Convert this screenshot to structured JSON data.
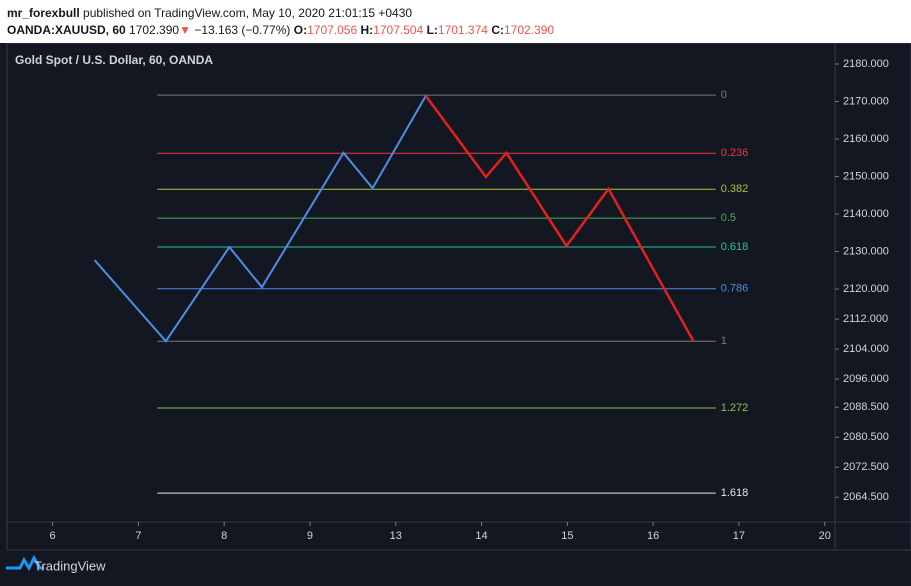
{
  "header": {
    "publisher": "mr_forexbull",
    "published": "published on TradingView.com, May 10, 2020 21:01:15 +0430",
    "symbol": "OANDA:XAUUSD, 60",
    "price": "1702.390",
    "arrow": "▼",
    "change": "−13.163 (−0.77%)",
    "o_label": "O:",
    "o": "1707.056",
    "h_label": "H:",
    "h": "1707.504",
    "l_label": "L:",
    "l": "1701.374",
    "c_label": "C:",
    "c": "1702.390"
  },
  "chart_data": {
    "type": "line",
    "title": "Gold Spot / U.S. Dollar, 60, OANDA",
    "xlim": [
      -0.52,
      9.12
    ],
    "xticks": [
      {
        "value": 0,
        "label": "6"
      },
      {
        "value": 1,
        "label": "7"
      },
      {
        "value": 2,
        "label": "8"
      },
      {
        "value": 3,
        "label": "9"
      },
      {
        "value": 4,
        "label": "13"
      },
      {
        "value": 5,
        "label": "14"
      },
      {
        "value": 6,
        "label": "15"
      },
      {
        "value": 7,
        "label": "16"
      },
      {
        "value": 8,
        "label": "17"
      },
      {
        "value": 9,
        "label": "20"
      }
    ],
    "ylim": [
      2057.9,
      2185.6
    ],
    "yticks": [
      {
        "value": 2180,
        "label": "2180.000"
      },
      {
        "value": 2170,
        "label": "2170.000"
      },
      {
        "value": 2160,
        "label": "2160.000"
      },
      {
        "value": 2150,
        "label": "2150.000"
      },
      {
        "value": 2140,
        "label": "2140.000"
      },
      {
        "value": 2130,
        "label": "2130.000"
      },
      {
        "value": 2120,
        "label": "2120.000"
      },
      {
        "value": 2112,
        "label": "2112.000"
      },
      {
        "value": 2104,
        "label": "2104.000"
      },
      {
        "value": 2096,
        "label": "2096.000"
      },
      {
        "value": 2088.5,
        "label": "2088.500"
      },
      {
        "value": 2080.5,
        "label": "2080.500"
      },
      {
        "value": 2072.5,
        "label": "2072.500"
      },
      {
        "value": 2064.5,
        "label": "2064.500"
      }
    ],
    "series": [
      {
        "color": "#4a8ee6",
        "x": [
          0.49,
          1.32,
          2.06,
          2.44,
          3.39,
          3.73,
          4.35
        ],
        "values": [
          2127.7,
          2106.1,
          2131.2,
          2120.5,
          2156.3,
          2146.9,
          2171.5
        ]
      },
      {
        "color": "#e3211c",
        "x": [
          4.35,
          5.05,
          5.29,
          5.99,
          6.48,
          7.47
        ],
        "values": [
          2171.5,
          2149.9,
          2156.3,
          2131.5,
          2146.7,
          2106.1
        ]
      }
    ],
    "fib_x": [
      1.22,
      7.73
    ],
    "fib_levels": [
      {
        "label": "0",
        "value": 2171.7,
        "color": "#787b86"
      },
      {
        "label": "0.236",
        "value": 2156.2,
        "color": "#f23645"
      },
      {
        "label": "0.382",
        "value": 2146.6,
        "color": "#a5c935"
      },
      {
        "label": "0.5",
        "value": 2138.9,
        "color": "#4caf50"
      },
      {
        "label": "0.618",
        "value": 2131.2,
        "color": "#26c6a0"
      },
      {
        "label": "0.786",
        "value": 2120.1,
        "color": "#4a8ee6"
      },
      {
        "label": "1",
        "value": 2106.1,
        "color": "#787b86"
      },
      {
        "label": "1.272",
        "value": 2088.3,
        "color": "#8bc34a"
      },
      {
        "label": "1.618",
        "value": 2065.6,
        "color": "#e6e6e6"
      }
    ]
  },
  "footer": {
    "brand": "TradingView"
  }
}
